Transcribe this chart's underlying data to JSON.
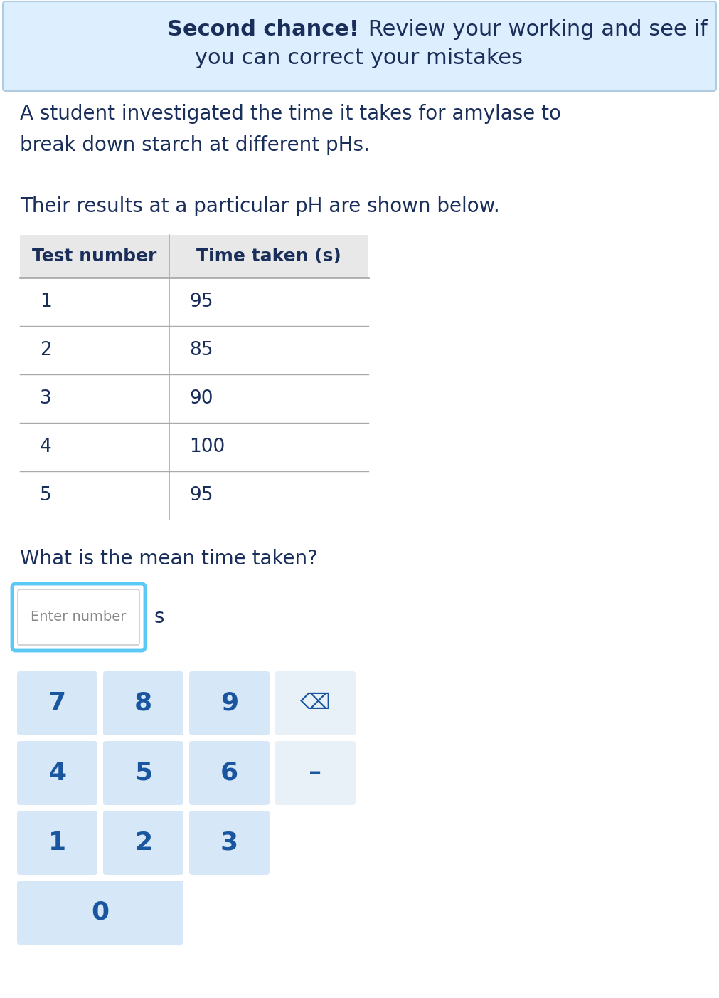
{
  "banner_text_bold": "Second chance!",
  "banner_text_normal": " Review your working and see if\nyou can correct your mistakes",
  "banner_bg_color": "#ddeeff",
  "banner_border_color": "#b0cce0",
  "body_bg_color": "#ffffff",
  "paragraph1": "A student investigated the time it takes for amylase to\nbreak down starch at different pHs.",
  "paragraph2": "Their results at a particular pH are shown below.",
  "table_header": [
    "Test number",
    "Time taken (s)"
  ],
  "table_data": [
    [
      "1",
      "95"
    ],
    [
      "2",
      "85"
    ],
    [
      "3",
      "90"
    ],
    [
      "4",
      "100"
    ],
    [
      "5",
      "95"
    ]
  ],
  "table_header_bg": "#e8e8e8",
  "table_border_color": "#aaaaaa",
  "question_text": "What is the mean time taken?",
  "input_box_placeholder": "Enter number",
  "input_unit": "s",
  "input_box_border_color": "#5bc8f5",
  "input_box_inner_border": "#cccccc",
  "keypad_buttons": [
    [
      "7",
      "8",
      "9",
      "⌫"
    ],
    [
      "4",
      "5",
      "6",
      "–"
    ],
    [
      "1",
      "2",
      "3",
      null
    ],
    [
      "0",
      null,
      null,
      null
    ]
  ],
  "keypad_bg_normal": "#d6e8f7",
  "keypad_bg_light": "#e8f0f8",
  "keypad_text_color": "#1a56a0",
  "text_color_dark": "#1a2e5a",
  "text_color_body": "#222222",
  "text_color_gray": "#888888",
  "figsize": [
    10.11,
    14.02
  ],
  "dpi": 100
}
